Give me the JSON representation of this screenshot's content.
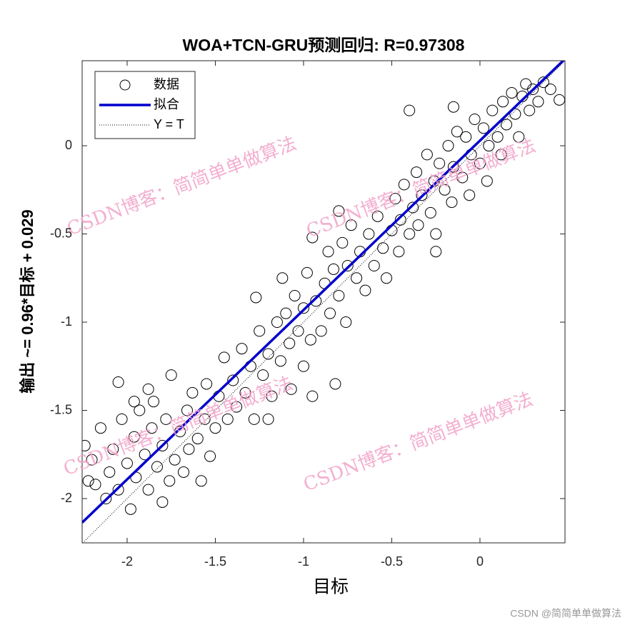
{
  "chart_data": {
    "type": "scatter",
    "title": "WOA+TCN-GRU预测回归: R=0.97308",
    "xlabel": "目标",
    "ylabel": "输出 ~= 0.96*目标 + 0.029",
    "xlim": [
      -2.255,
      0.482
    ],
    "ylim": [
      -2.251,
      0.482
    ],
    "xticks": [
      -2,
      -1.5,
      -1,
      -0.5,
      0
    ],
    "yticks": [
      -2,
      -1.5,
      -1,
      -0.5,
      0
    ],
    "legend": "northwest",
    "series": [
      {
        "name": "数据",
        "color": "#000000",
        "style": "marker",
        "x": [
          -2.24,
          -2.22,
          -2.2,
          -2.18,
          -2.15,
          -2.12,
          -2.1,
          -2.08,
          -2.05,
          -2.03,
          -2.0,
          -1.98,
          -1.96,
          -1.95,
          -1.93,
          -1.9,
          -1.88,
          -1.86,
          -1.85,
          -1.83,
          -1.8,
          -1.8,
          -1.78,
          -1.76,
          -1.75,
          -1.73,
          -1.7,
          -1.68,
          -1.66,
          -1.65,
          -1.63,
          -1.6,
          -1.58,
          -1.56,
          -1.55,
          -1.53,
          -2.05,
          -1.96,
          -1.88,
          -1.5,
          -1.48,
          -1.45,
          -1.43,
          -1.4,
          -1.38,
          -1.35,
          -1.33,
          -1.3,
          -1.28,
          -1.25,
          -1.23,
          -1.2,
          -1.18,
          -1.15,
          -1.13,
          -1.1,
          -1.08,
          -1.05,
          -1.03,
          -1.0,
          -1.0,
          -0.98,
          -0.96,
          -0.95,
          -0.93,
          -1.27,
          -1.12,
          -1.2,
          -1.07,
          -0.9,
          -0.88,
          -0.86,
          -0.85,
          -0.83,
          -0.8,
          -0.78,
          -0.76,
          -0.75,
          -0.73,
          -0.7,
          -0.68,
          -0.65,
          -0.63,
          -0.6,
          -0.58,
          -0.55,
          -0.53,
          -0.5,
          -0.95,
          -0.82,
          -0.8,
          -0.48,
          -0.46,
          -0.45,
          -0.43,
          -0.4,
          -0.38,
          -0.36,
          -0.35,
          -0.33,
          -0.3,
          -0.28,
          -0.26,
          -0.25,
          -0.23,
          -0.2,
          -0.18,
          -0.16,
          -0.15,
          -0.13,
          -0.1,
          -0.08,
          -0.06,
          -0.05,
          -0.03,
          0.0,
          0.02,
          0.04,
          0.05,
          0.07,
          0.1,
          0.12,
          0.13,
          0.15,
          0.18,
          0.2,
          0.22,
          0.24,
          0.26,
          0.28,
          0.3,
          0.33,
          0.36,
          0.4,
          0.45,
          -0.4,
          -0.25,
          -0.15
        ],
        "values": [
          -1.7,
          -1.9,
          -1.78,
          -1.92,
          -1.6,
          -2.0,
          -1.85,
          -1.72,
          -1.95,
          -1.55,
          -1.8,
          -2.06,
          -1.65,
          -1.88,
          -1.5,
          -1.75,
          -1.95,
          -1.6,
          -1.45,
          -1.82,
          -1.7,
          -2.02,
          -1.55,
          -1.9,
          -1.3,
          -1.78,
          -1.62,
          -1.85,
          -1.5,
          -1.72,
          -1.4,
          -1.66,
          -1.9,
          -1.55,
          -1.35,
          -1.76,
          -1.34,
          -1.45,
          -1.38,
          -1.6,
          -1.42,
          -1.2,
          -1.55,
          -1.33,
          -1.48,
          -1.15,
          -1.4,
          -1.25,
          -1.55,
          -1.05,
          -1.3,
          -1.18,
          -1.42,
          -1.0,
          -1.22,
          -0.95,
          -1.12,
          -0.85,
          -1.05,
          -1.25,
          -0.92,
          -0.72,
          -1.1,
          -1.42,
          -0.88,
          -0.86,
          -0.75,
          -1.55,
          -1.38,
          -1.05,
          -0.78,
          -0.6,
          -0.95,
          -0.7,
          -0.85,
          -0.55,
          -1.0,
          -0.68,
          -0.45,
          -0.75,
          -0.6,
          -0.82,
          -0.5,
          -0.68,
          -0.4,
          -0.58,
          -0.75,
          -0.48,
          -0.52,
          -1.35,
          -0.37,
          -0.3,
          -0.6,
          -0.42,
          -0.22,
          -0.5,
          -0.35,
          -0.15,
          -0.45,
          -0.28,
          -0.05,
          -0.38,
          -0.2,
          -0.5,
          -0.1,
          -0.25,
          0.0,
          -0.32,
          -0.12,
          0.08,
          -0.18,
          0.05,
          -0.28,
          -0.05,
          0.15,
          -0.1,
          0.1,
          -0.2,
          0.0,
          0.2,
          0.05,
          -0.05,
          0.25,
          0.12,
          0.3,
          0.18,
          0.05,
          0.28,
          0.35,
          0.2,
          0.32,
          0.25,
          0.36,
          0.32,
          0.26,
          0.2,
          -0.6,
          0.22
        ]
      },
      {
        "name": "拟合",
        "color": "#0000cc",
        "style": "line",
        "x": [
          -2.255,
          0.482
        ],
        "values": [
          -2.136,
          0.492
        ]
      },
      {
        "name": "Y = T",
        "color": "#000000",
        "style": "dotted",
        "x": [
          -2.251,
          0.482
        ],
        "values": [
          -2.251,
          0.482
        ]
      }
    ]
  },
  "watermark": "CSDN博客：简简单单做算法",
  "credit": "CSDN @简简单单做算法"
}
